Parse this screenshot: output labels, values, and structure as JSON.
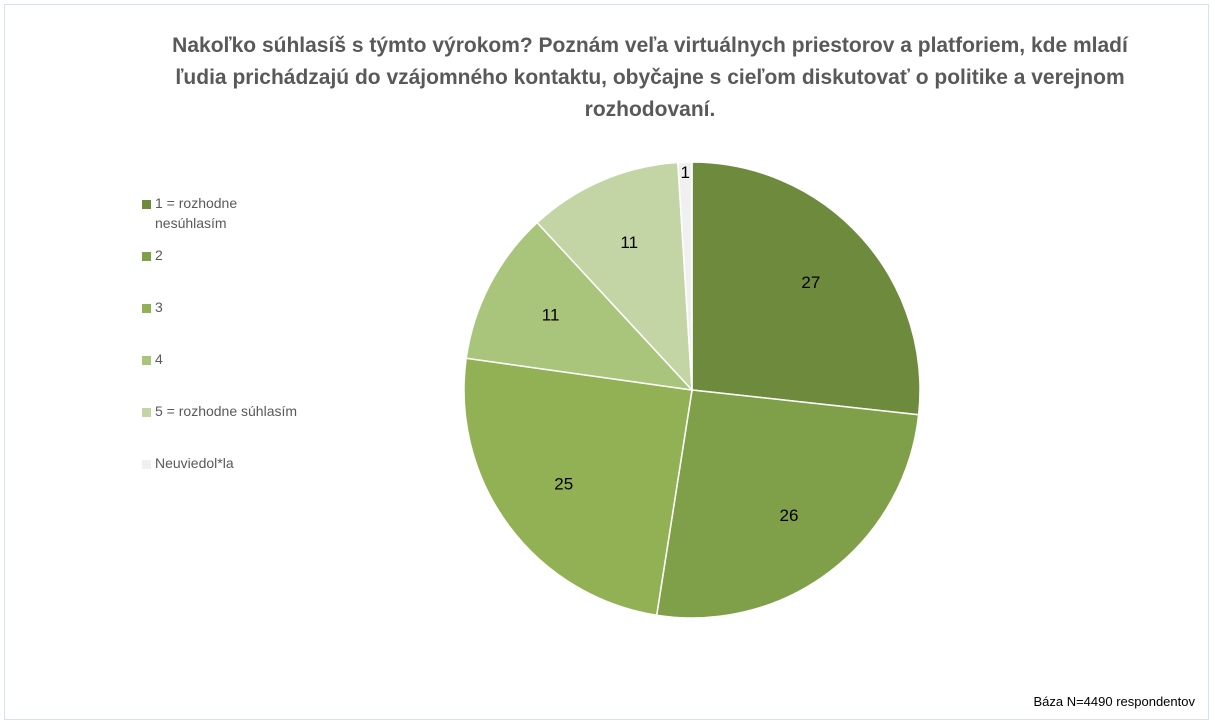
{
  "chart_data": {
    "type": "pie",
    "title": "Nakoľko súhlasíš s týmto výrokom? Poznám veľa virtuálnych priestorov a platforiem, kde mladí ľudia prichádzajú do vzájomného kontaktu, obyčajne s cieľom diskutovať o politike a verejnom rozhodovaní.",
    "categories": [
      "1 = rozhodne nesúhlasím",
      "2",
      "3",
      "4",
      "5 = rozhodne súhlasím",
      "Neuviedol*la"
    ],
    "values": [
      27,
      26,
      25,
      11,
      11,
      1
    ],
    "colors": [
      "#6e8b3d",
      "#7f9f48",
      "#92b155",
      "#a9c47b",
      "#c3d5a4",
      "#f0f0f0"
    ],
    "legend": "left",
    "note": "Báza N=4490 respondentov"
  }
}
